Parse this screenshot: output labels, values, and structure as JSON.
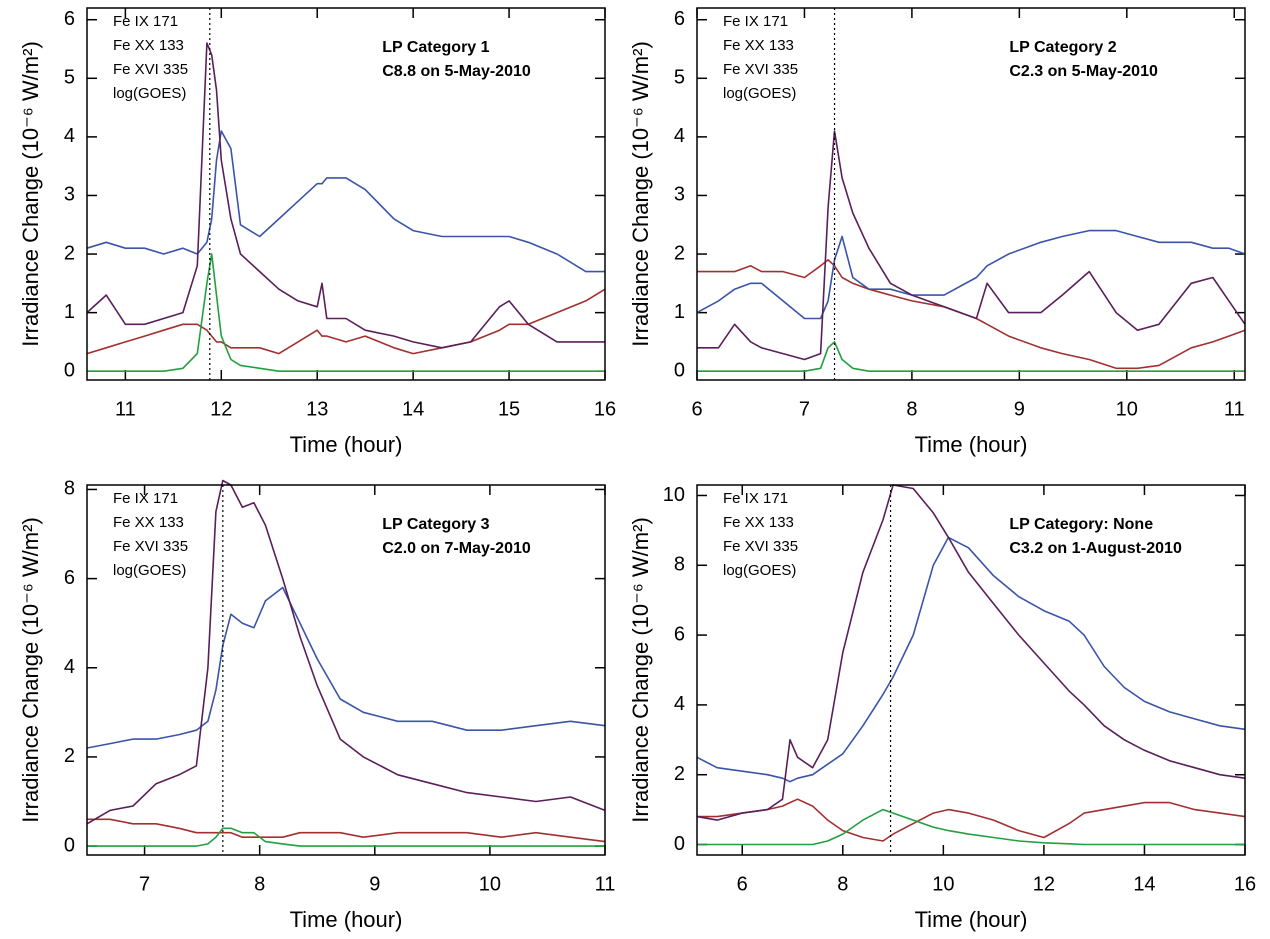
{
  "chart_data": [
    {
      "type": "line",
      "xlabel": "Time (hour)",
      "ylabel": "Irradiance Change (10⁻⁶ W/m²)",
      "annotations": [
        "LP Category 1",
        "C8.8 on 5-May-2010"
      ],
      "vline": 11.88,
      "xlim": [
        10.6,
        16
      ],
      "ylim": [
        -0.15,
        6.2
      ],
      "xticks": [
        11,
        12,
        13,
        14,
        15,
        16
      ],
      "yticks": [
        0,
        1,
        2,
        3,
        4,
        5,
        6
      ],
      "x": [
        10.6,
        10.8,
        11.0,
        11.2,
        11.4,
        11.6,
        11.75,
        11.85,
        11.9,
        11.95,
        12.0,
        12.1,
        12.2,
        12.4,
        12.6,
        12.8,
        13.0,
        13.05,
        13.1,
        13.3,
        13.5,
        13.8,
        14.0,
        14.3,
        14.6,
        14.9,
        15.0,
        15.2,
        15.5,
        15.8,
        16.0
      ],
      "series": [
        {
          "name": "Fe IX 171",
          "color": "#a33030",
          "values": [
            0.3,
            0.4,
            0.5,
            0.6,
            0.7,
            0.8,
            0.8,
            0.7,
            0.6,
            0.5,
            0.5,
            0.4,
            0.4,
            0.4,
            0.3,
            0.5,
            0.7,
            0.6,
            0.6,
            0.5,
            0.6,
            0.4,
            0.3,
            0.4,
            0.5,
            0.7,
            0.8,
            0.8,
            1.0,
            1.2,
            1.4
          ]
        },
        {
          "name": "Fe XX 133",
          "color": "#22a040",
          "values": [
            0,
            0,
            0,
            0,
            0,
            0.05,
            0.3,
            1.5,
            2.0,
            1.3,
            0.6,
            0.2,
            0.1,
            0.05,
            0,
            0,
            0,
            0,
            0,
            0,
            0,
            0,
            0,
            0,
            0,
            0,
            0,
            0,
            0,
            0,
            0
          ]
        },
        {
          "name": "Fe XVI 335",
          "color": "#3a55a8",
          "values": [
            2.1,
            2.2,
            2.1,
            2.1,
            2.0,
            2.1,
            2.0,
            2.2,
            2.6,
            3.6,
            4.1,
            3.8,
            2.5,
            2.3,
            2.6,
            2.9,
            3.2,
            3.2,
            3.3,
            3.3,
            3.1,
            2.6,
            2.4,
            2.3,
            2.3,
            2.3,
            2.3,
            2.2,
            2.0,
            1.7,
            1.7
          ]
        },
        {
          "name": "log(GOES)",
          "color": "#5a1f5a",
          "values": [
            1.0,
            1.3,
            0.8,
            0.8,
            0.9,
            1.0,
            1.8,
            5.6,
            5.4,
            4.8,
            3.6,
            2.6,
            2.0,
            1.7,
            1.4,
            1.2,
            1.1,
            1.5,
            0.9,
            0.9,
            0.7,
            0.6,
            0.5,
            0.4,
            0.5,
            1.1,
            1.2,
            0.8,
            0.5,
            0.5,
            0.5
          ]
        }
      ]
    },
    {
      "type": "line",
      "xlabel": "Time (hour)",
      "ylabel": "Irradiance Change (10⁻⁶ W/m²)",
      "annotations": [
        "LP Category 2",
        "C2.3 on 5-May-2010"
      ],
      "vline": 7.28,
      "xlim": [
        6,
        11.1
      ],
      "ylim": [
        -0.15,
        6.2
      ],
      "xticks": [
        6,
        7,
        8,
        9,
        10,
        11
      ],
      "yticks": [
        0,
        1,
        2,
        3,
        4,
        5,
        6
      ],
      "x": [
        6.0,
        6.2,
        6.35,
        6.5,
        6.6,
        6.8,
        7.0,
        7.15,
        7.22,
        7.28,
        7.35,
        7.45,
        7.6,
        7.8,
        8.0,
        8.3,
        8.6,
        8.7,
        8.9,
        9.2,
        9.4,
        9.65,
        9.9,
        10.1,
        10.3,
        10.6,
        10.8,
        10.95,
        11.1
      ],
      "series": [
        {
          "name": "Fe IX 171",
          "color": "#a33030",
          "values": [
            1.7,
            1.7,
            1.7,
            1.8,
            1.7,
            1.7,
            1.6,
            1.8,
            1.9,
            1.8,
            1.6,
            1.5,
            1.4,
            1.3,
            1.2,
            1.1,
            0.9,
            0.8,
            0.6,
            0.4,
            0.3,
            0.2,
            0.05,
            0.05,
            0.1,
            0.4,
            0.5,
            0.6,
            0.7
          ]
        },
        {
          "name": "Fe XX 133",
          "color": "#22a040",
          "values": [
            0,
            0,
            0,
            0,
            0,
            0,
            0,
            0.05,
            0.4,
            0.5,
            0.2,
            0.05,
            0,
            0,
            0,
            0,
            0,
            0,
            0,
            0,
            0,
            0,
            0,
            0,
            0,
            0,
            0,
            0,
            0
          ]
        },
        {
          "name": "Fe XVI 335",
          "color": "#3a55a8",
          "values": [
            1.0,
            1.2,
            1.4,
            1.5,
            1.5,
            1.2,
            0.9,
            0.9,
            1.2,
            1.9,
            2.3,
            1.6,
            1.4,
            1.4,
            1.3,
            1.3,
            1.6,
            1.8,
            2.0,
            2.2,
            2.3,
            2.4,
            2.4,
            2.3,
            2.2,
            2.2,
            2.1,
            2.1,
            2.0
          ]
        },
        {
          "name": "log(GOES)",
          "color": "#5a1f5a",
          "values": [
            0.4,
            0.4,
            0.8,
            0.5,
            0.4,
            0.3,
            0.2,
            0.3,
            2.8,
            4.1,
            3.3,
            2.7,
            2.1,
            1.5,
            1.3,
            1.1,
            0.9,
            1.5,
            1.0,
            1.0,
            1.3,
            1.7,
            1.0,
            0.7,
            0.8,
            1.5,
            1.6,
            1.2,
            0.8
          ]
        }
      ]
    },
    {
      "type": "line",
      "xlabel": "Time (hour)",
      "ylabel": "Irradiance Change (10⁻⁶ W/m²)",
      "annotations": [
        "LP Category 3",
        "C2.0 on 7-May-2010"
      ],
      "vline": 7.68,
      "xlim": [
        6.5,
        11
      ],
      "ylim": [
        -0.2,
        8.1
      ],
      "xticks": [
        7,
        8,
        9,
        10,
        11
      ],
      "yticks": [
        0,
        2,
        4,
        6,
        8
      ],
      "x": [
        6.5,
        6.7,
        6.9,
        7.1,
        7.3,
        7.45,
        7.55,
        7.62,
        7.68,
        7.75,
        7.85,
        7.95,
        8.05,
        8.2,
        8.35,
        8.5,
        8.7,
        8.9,
        9.2,
        9.5,
        9.8,
        10.1,
        10.4,
        10.7,
        11.0
      ],
      "series": [
        {
          "name": "Fe IX 171",
          "color": "#a33030",
          "values": [
            0.6,
            0.6,
            0.5,
            0.5,
            0.4,
            0.3,
            0.3,
            0.3,
            0.3,
            0.3,
            0.2,
            0.2,
            0.2,
            0.2,
            0.3,
            0.3,
            0.3,
            0.2,
            0.3,
            0.3,
            0.3,
            0.2,
            0.3,
            0.2,
            0.1
          ]
        },
        {
          "name": "Fe XX 133",
          "color": "#22a040",
          "values": [
            0,
            0,
            0,
            0,
            0,
            0,
            0.05,
            0.2,
            0.4,
            0.4,
            0.3,
            0.3,
            0.1,
            0.05,
            0,
            0,
            0,
            0,
            0,
            0,
            0,
            0,
            0,
            0,
            0
          ]
        },
        {
          "name": "Fe XVI 335",
          "color": "#3a55a8",
          "values": [
            2.2,
            2.3,
            2.4,
            2.4,
            2.5,
            2.6,
            2.8,
            3.5,
            4.5,
            5.2,
            5.0,
            4.9,
            5.5,
            5.8,
            5.0,
            4.2,
            3.3,
            3.0,
            2.8,
            2.8,
            2.6,
            2.6,
            2.7,
            2.8,
            2.7
          ]
        },
        {
          "name": "log(GOES)",
          "color": "#5a1f5a",
          "values": [
            0.5,
            0.8,
            0.9,
            1.4,
            1.6,
            1.8,
            4.0,
            7.5,
            8.2,
            8.1,
            7.6,
            7.7,
            7.2,
            6.0,
            4.7,
            3.6,
            2.4,
            2.0,
            1.6,
            1.4,
            1.2,
            1.1,
            1.0,
            1.1,
            0.8
          ]
        }
      ]
    },
    {
      "type": "line",
      "xlabel": "Time (hour)",
      "ylabel": "Irradiance Change (10⁻⁶ W/m²)",
      "annotations": [
        "LP Category: None",
        "C3.2 on 1-August-2010"
      ],
      "vline": 8.95,
      "xlim": [
        5.1,
        16
      ],
      "ylim": [
        -0.3,
        10.3
      ],
      "xticks": [
        6,
        8,
        10,
        12,
        14,
        16
      ],
      "yticks": [
        0,
        2,
        4,
        6,
        8,
        10
      ],
      "x": [
        5.1,
        5.5,
        6.0,
        6.5,
        6.8,
        6.95,
        7.1,
        7.4,
        7.7,
        8.0,
        8.4,
        8.8,
        9.0,
        9.4,
        9.8,
        10.1,
        10.5,
        11.0,
        11.5,
        12.0,
        12.5,
        12.8,
        13.2,
        13.6,
        14.0,
        14.5,
        15.0,
        15.5,
        16.0
      ],
      "series": [
        {
          "name": "Fe IX 171",
          "color": "#a33030",
          "values": [
            0.8,
            0.8,
            0.9,
            1.0,
            1.1,
            1.2,
            1.3,
            1.1,
            0.7,
            0.4,
            0.2,
            0.1,
            0.3,
            0.6,
            0.9,
            1.0,
            0.9,
            0.7,
            0.4,
            0.2,
            0.6,
            0.9,
            1.0,
            1.1,
            1.2,
            1.2,
            1.0,
            0.9,
            0.8
          ]
        },
        {
          "name": "Fe XX 133",
          "color": "#22a040",
          "values": [
            0,
            0,
            0,
            0,
            0,
            0,
            0,
            0,
            0.1,
            0.3,
            0.7,
            1.0,
            0.9,
            0.7,
            0.5,
            0.4,
            0.3,
            0.2,
            0.1,
            0.05,
            0.02,
            0,
            0,
            0,
            0,
            0,
            0,
            0,
            0
          ]
        },
        {
          "name": "Fe XVI 335",
          "color": "#3a55a8",
          "values": [
            2.5,
            2.2,
            2.1,
            2.0,
            1.9,
            1.8,
            1.9,
            2.0,
            2.3,
            2.6,
            3.4,
            4.3,
            4.8,
            6.0,
            8.0,
            8.8,
            8.5,
            7.7,
            7.1,
            6.7,
            6.4,
            6.0,
            5.1,
            4.5,
            4.1,
            3.8,
            3.6,
            3.4,
            3.3
          ]
        },
        {
          "name": "log(GOES)",
          "color": "#5a1f5a",
          "values": [
            0.8,
            0.7,
            0.9,
            1.0,
            1.3,
            3.0,
            2.5,
            2.2,
            3.0,
            5.5,
            7.8,
            9.3,
            10.3,
            10.2,
            9.5,
            8.8,
            7.8,
            6.9,
            6.0,
            5.2,
            4.4,
            4.0,
            3.4,
            3.0,
            2.7,
            2.4,
            2.2,
            2.0,
            1.9
          ]
        }
      ]
    }
  ]
}
